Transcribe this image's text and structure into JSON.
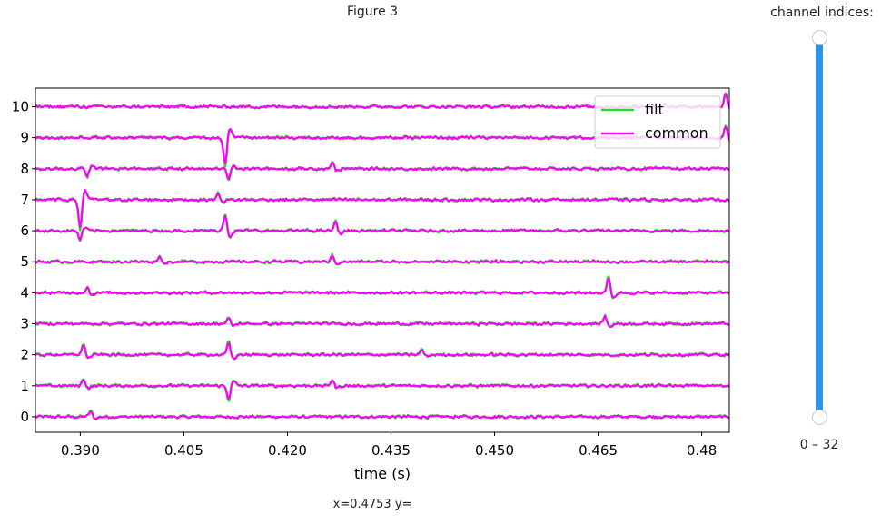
{
  "figure": {
    "title": "Figure 3"
  },
  "status": {
    "readout": "x=0.4753 y="
  },
  "slider": {
    "title": "channel indices:",
    "range_label": "0 – 32",
    "min": 0,
    "max": 32,
    "value": [
      0,
      32
    ],
    "accent_color": "#2f94e8"
  },
  "chart_data": {
    "type": "line",
    "title": "",
    "xlabel": "time (s)",
    "ylabel": "",
    "xlim": [
      0.3835,
      0.484
    ],
    "ylim": [
      10.6,
      -0.5
    ],
    "xticks": [
      0.39,
      0.405,
      0.42,
      0.435,
      0.45,
      0.465,
      0.48
    ],
    "xtick_labels": [
      "0.390",
      "0.405",
      "0.420",
      "0.435",
      "0.450",
      "0.465",
      "0.48"
    ],
    "channels": [
      0,
      1,
      2,
      3,
      4,
      5,
      6,
      7,
      8,
      9,
      10
    ],
    "ytick_labels": [
      "0",
      "1",
      "2",
      "3",
      "4",
      "5",
      "6",
      "7",
      "8",
      "9",
      "10"
    ],
    "legend": {
      "placement": "top-right",
      "entries": [
        "filt",
        "common"
      ]
    },
    "grid": false,
    "series": [
      {
        "name": "filt",
        "color": "#22dd22",
        "noise_amplitude": 0.06
      },
      {
        "name": "common",
        "color": "#ff00ff",
        "noise_amplitude": 0.045
      }
    ],
    "spikes": [
      {
        "channel": 0,
        "t": 0.3915,
        "amp": 0.18
      },
      {
        "channel": 1,
        "t": 0.3905,
        "amp": 0.22
      },
      {
        "channel": 1,
        "t": 0.4115,
        "amp": -0.45
      },
      {
        "channel": 1,
        "t": 0.4265,
        "amp": 0.2
      },
      {
        "channel": 2,
        "t": 0.3905,
        "amp": 0.35
      },
      {
        "channel": 2,
        "t": 0.4115,
        "amp": 0.4
      },
      {
        "channel": 2,
        "t": 0.4395,
        "amp": 0.18
      },
      {
        "channel": 3,
        "t": 0.4115,
        "amp": 0.18
      },
      {
        "channel": 3,
        "t": 0.466,
        "amp": 0.25
      },
      {
        "channel": 4,
        "t": 0.391,
        "amp": 0.18
      },
      {
        "channel": 4,
        "t": 0.4665,
        "amp": 0.5
      },
      {
        "channel": 5,
        "t": 0.4015,
        "amp": 0.18
      },
      {
        "channel": 5,
        "t": 0.4265,
        "amp": 0.2
      },
      {
        "channel": 6,
        "t": 0.39,
        "amp": -0.3
      },
      {
        "channel": 6,
        "t": 0.411,
        "amp": 0.55
      },
      {
        "channel": 6,
        "t": 0.427,
        "amp": 0.3
      },
      {
        "channel": 7,
        "t": 0.39,
        "amp": -0.95
      },
      {
        "channel": 7,
        "t": 0.41,
        "amp": 0.2
      },
      {
        "channel": 8,
        "t": 0.391,
        "amp": -0.25
      },
      {
        "channel": 8,
        "t": 0.4115,
        "amp": -0.35
      },
      {
        "channel": 8,
        "t": 0.4265,
        "amp": 0.2
      },
      {
        "channel": 9,
        "t": 0.411,
        "amp": -0.9
      },
      {
        "channel": 9,
        "t": 0.4835,
        "amp": 0.35
      },
      {
        "channel": 10,
        "t": 0.4835,
        "amp": 0.45
      }
    ]
  }
}
